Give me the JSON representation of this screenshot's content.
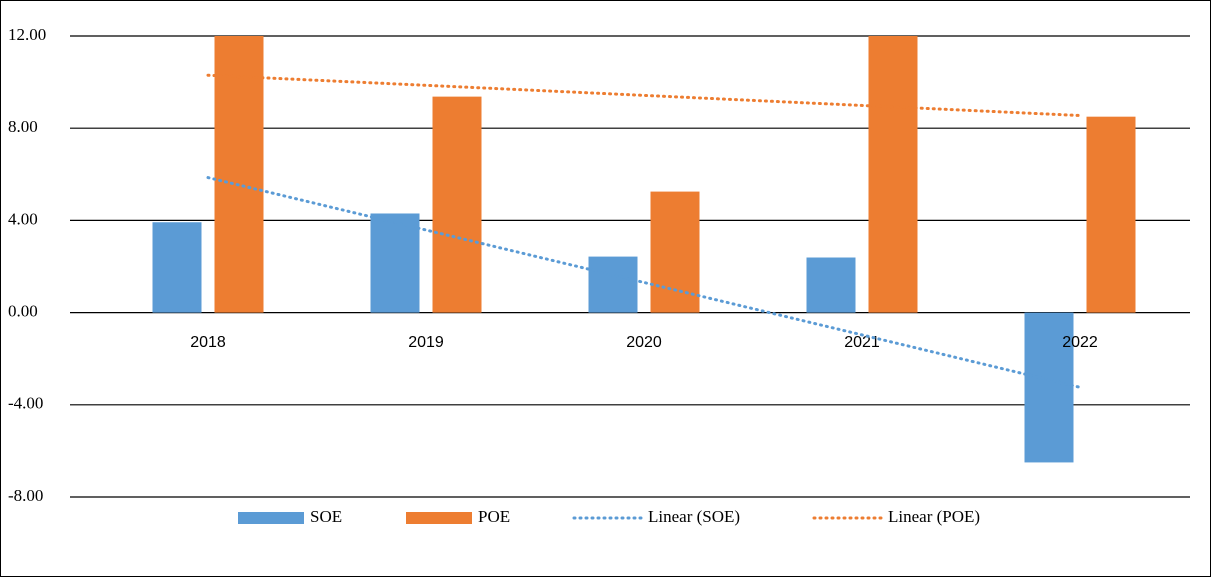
{
  "chart_data": {
    "type": "bar",
    "categories": [
      "2018",
      "2019",
      "2020",
      "2021",
      "2022"
    ],
    "series": [
      {
        "name": "SOE",
        "color": "#5b9bd5",
        "values": [
          3.92,
          4.3,
          2.43,
          2.39,
          -6.5
        ],
        "trendline": "Linear (SOE)"
      },
      {
        "name": "POE",
        "color": "#ed7d31",
        "values": [
          12,
          9.37,
          5.25,
          12,
          8.5
        ],
        "trendline": "Linear (POE)"
      }
    ],
    "ylim": [
      -8,
      12
    ],
    "yticks": [
      {
        "value": -8,
        "label": "-8.00"
      },
      {
        "value": -4,
        "label": "-4.00"
      },
      {
        "value": 0,
        "label": "0.00"
      },
      {
        "value": 4,
        "label": "4.00"
      },
      {
        "value": 8,
        "label": "8.00"
      },
      {
        "value": 12,
        "label": "12.00"
      }
    ],
    "grid": true,
    "legend": "bottom"
  }
}
